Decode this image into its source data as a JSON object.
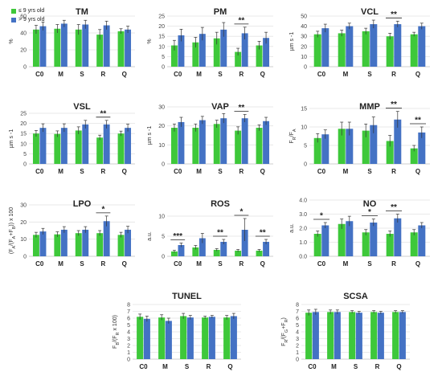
{
  "legend": [
    {
      "label": "≤ 9 yrs old",
      "color": "#3ec83a"
    },
    {
      "label": "> 9 yrs old",
      "color": "#4472c4"
    }
  ],
  "chart_data": [
    {
      "type": "bar",
      "title": "TM",
      "ylabel": "%",
      "categories": [
        "C0",
        "M",
        "S",
        "R",
        "Q"
      ],
      "ylim": [
        0,
        60
      ],
      "yticks": [
        0,
        20,
        40,
        60
      ],
      "series": [
        {
          "name": "≤ 9 yrs old",
          "values": [
            44,
            45,
            44,
            38,
            42
          ],
          "errors": [
            5,
            5,
            6,
            6,
            3
          ]
        },
        {
          "name": "> 9 yrs old",
          "values": [
            48,
            51,
            50,
            49,
            44
          ],
          "errors": [
            5,
            4,
            5,
            5,
            4
          ]
        }
      ],
      "annotations": []
    },
    {
      "type": "bar",
      "title": "PM",
      "ylabel": "%",
      "categories": [
        "C0",
        "M",
        "S",
        "R",
        "Q"
      ],
      "ylim": [
        0,
        25
      ],
      "yticks": [
        0,
        5,
        10,
        15,
        20,
        25
      ],
      "series": [
        {
          "name": "≤ 9 yrs old",
          "values": [
            10.5,
            12,
            14,
            7.3,
            10.5
          ],
          "errors": [
            2.5,
            2.5,
            3,
            1.8,
            2
          ]
        },
        {
          "name": "> 9 yrs old",
          "values": [
            15.5,
            16.2,
            18.3,
            16.5,
            14.2
          ],
          "errors": [
            3,
            3.2,
            3.5,
            3,
            2.8
          ]
        }
      ],
      "annotations": [
        {
          "category": "R",
          "label": "**"
        }
      ]
    },
    {
      "type": "bar",
      "title": "VCL",
      "ylabel": "µm s -1",
      "categories": [
        "C0",
        "M",
        "S",
        "R",
        "Q"
      ],
      "ylim": [
        0,
        50
      ],
      "yticks": [
        0,
        10,
        20,
        30,
        40,
        50
      ],
      "series": [
        {
          "name": "≤ 9 yrs old",
          "values": [
            32,
            33,
            35,
            30,
            32
          ],
          "errors": [
            3,
            3,
            3,
            3,
            2
          ]
        },
        {
          "name": "> 9 yrs old",
          "values": [
            38,
            40,
            42,
            42,
            40
          ],
          "errors": [
            4,
            3,
            4,
            3,
            3
          ]
        }
      ],
      "annotations": [
        {
          "category": "R",
          "label": "**"
        }
      ]
    },
    {
      "type": "bar",
      "title": "VSL",
      "ylabel": "µm s -1",
      "categories": [
        "C0",
        "M",
        "S",
        "R",
        "Q"
      ],
      "ylim": [
        0,
        25
      ],
      "yticks": [
        0,
        5,
        10,
        15,
        20,
        25
      ],
      "series": [
        {
          "name": "≤ 9 yrs old",
          "values": [
            15,
            14.8,
            16.5,
            13,
            15
          ],
          "errors": [
            1.5,
            1.5,
            1.8,
            1.2,
            1.2
          ]
        },
        {
          "name": "> 9 yrs old",
          "values": [
            17.8,
            17.8,
            19.5,
            19.5,
            17.8
          ],
          "errors": [
            2,
            2,
            2,
            2,
            1.8
          ]
        }
      ],
      "annotations": [
        {
          "category": "R",
          "label": "**"
        }
      ]
    },
    {
      "type": "bar",
      "title": "VAP",
      "ylabel": "µm s -1",
      "categories": [
        "C0",
        "M",
        "S",
        "R",
        "Q"
      ],
      "ylim": [
        0,
        30
      ],
      "yticks": [
        0,
        10,
        20,
        30
      ],
      "series": [
        {
          "name": "≤ 9 yrs old",
          "values": [
            19,
            19,
            21,
            17.5,
            19
          ],
          "errors": [
            2,
            2,
            2,
            2,
            1.5
          ]
        },
        {
          "name": "> 9 yrs old",
          "values": [
            22,
            23,
            24,
            24,
            22.5
          ],
          "errors": [
            2.5,
            2,
            2.5,
            2,
            2
          ]
        }
      ],
      "annotations": [
        {
          "category": "R",
          "label": "**"
        }
      ]
    },
    {
      "type": "bar",
      "title": "MMP",
      "ylabel": "F_R/F_A",
      "categories": [
        "C0",
        "M",
        "S",
        "R",
        "Q"
      ],
      "ylim": [
        0,
        15
      ],
      "yticks": [
        0,
        5,
        10,
        15
      ],
      "series": [
        {
          "name": "≤ 9 yrs old",
          "values": [
            7,
            9.5,
            9,
            6.2,
            4.2
          ],
          "errors": [
            1.2,
            1.8,
            1.8,
            1.5,
            0.8
          ]
        },
        {
          "name": "> 9 yrs old",
          "values": [
            8,
            9.5,
            10.5,
            12,
            8.5
          ],
          "errors": [
            1.2,
            1.8,
            2.2,
            2.2,
            1.5
          ]
        }
      ],
      "annotations": [
        {
          "category": "R",
          "label": "**"
        },
        {
          "category": "Q",
          "label": "**"
        }
      ]
    },
    {
      "type": "bar",
      "title": "LPO",
      "ylabel": "(F_A/(F_A+F_B)) x 100",
      "categories": [
        "C0",
        "M",
        "S",
        "R",
        "Q"
      ],
      "ylim": [
        0,
        30
      ],
      "yticks": [
        0,
        10,
        20,
        30
      ],
      "series": [
        {
          "name": "≤ 9 yrs old",
          "values": [
            12.5,
            12.8,
            13.5,
            13.5,
            12.5
          ],
          "errors": [
            1.5,
            1.5,
            1.5,
            1.5,
            1.5
          ]
        },
        {
          "name": "> 9 yrs old",
          "values": [
            14.5,
            15.5,
            15.5,
            20.5,
            15.5
          ],
          "errors": [
            1.8,
            1.8,
            1.8,
            3,
            2
          ]
        }
      ],
      "annotations": [
        {
          "category": "R",
          "label": "*"
        }
      ]
    },
    {
      "type": "bar",
      "title": "ROS",
      "ylabel": "a.u.",
      "categories": [
        "C0",
        "M",
        "S",
        "R",
        "Q"
      ],
      "ylim": [
        0,
        10
      ],
      "yticks": [
        0,
        5,
        10
      ],
      "series": [
        {
          "name": "≤ 9 yrs old",
          "values": [
            1.2,
            2.2,
            1.6,
            1.4,
            1.4
          ],
          "errors": [
            0.3,
            0.5,
            0.3,
            0.3,
            0.3
          ]
        },
        {
          "name": "> 9 yrs old",
          "values": [
            2.8,
            4.5,
            3.6,
            6.6,
            3.6
          ],
          "errors": [
            0.5,
            1.2,
            0.6,
            2.8,
            0.6
          ]
        }
      ],
      "annotations": [
        {
          "category": "C0",
          "label": "***"
        },
        {
          "category": "S",
          "label": "**"
        },
        {
          "category": "R",
          "label": "*"
        },
        {
          "category": "Q",
          "label": "**"
        }
      ]
    },
    {
      "type": "bar",
      "title": "NO",
      "ylabel": "a.u.",
      "categories": [
        "C0",
        "M",
        "S",
        "R",
        "Q"
      ],
      "ylim": [
        0,
        4
      ],
      "yticks": [
        "0.0",
        "1.0",
        "2.0",
        "3.0",
        "4.0"
      ],
      "series": [
        {
          "name": "≤ 9 yrs old",
          "values": [
            1.6,
            2.3,
            1.7,
            1.6,
            1.7
          ],
          "errors": [
            0.2,
            0.35,
            0.2,
            0.2,
            0.2
          ]
        },
        {
          "name": "> 9 yrs old",
          "values": [
            2.2,
            2.5,
            2.4,
            2.7,
            2.2
          ],
          "errors": [
            0.2,
            0.35,
            0.25,
            0.3,
            0.2
          ]
        }
      ],
      "annotations": [
        {
          "category": "C0",
          "label": "*"
        },
        {
          "category": "S",
          "label": "*"
        },
        {
          "category": "R",
          "label": "**"
        }
      ]
    },
    {
      "type": "bar",
      "title": "TUNEL",
      "ylabel": "F_B/(F_R x 100)",
      "categories": [
        "C0",
        "M",
        "S",
        "R",
        "Q"
      ],
      "ylim": [
        0,
        8
      ],
      "yticks": [
        0,
        1,
        2,
        3,
        4,
        5,
        6,
        7,
        8
      ],
      "series": [
        {
          "name": "≤ 9 yrs old",
          "values": [
            6.2,
            6.1,
            6.3,
            6.1,
            6.1
          ],
          "errors": [
            0.4,
            0.4,
            0.4,
            0.2,
            0.3
          ]
        },
        {
          "name": "> 9 yrs old",
          "values": [
            5.9,
            5.6,
            6.1,
            6.2,
            6.3
          ],
          "errors": [
            0.4,
            0.4,
            0.3,
            0.2,
            0.4
          ]
        }
      ],
      "annotations": []
    },
    {
      "type": "bar",
      "title": "SCSA",
      "ylabel": "F_R/(F_G+F_R)",
      "categories": [
        "C0",
        "M",
        "S",
        "R",
        "Q"
      ],
      "ylim": [
        0,
        8
      ],
      "yticks": [
        0,
        1,
        2,
        3,
        4,
        5,
        6,
        7,
        8
      ],
      "series": [
        {
          "name": "≤ 9 yrs old",
          "values": [
            6.8,
            6.9,
            6.9,
            6.9,
            6.9
          ],
          "errors": [
            0.4,
            0.3,
            0.2,
            0.2,
            0.2
          ]
        },
        {
          "name": "> 9 yrs old",
          "values": [
            6.9,
            6.9,
            6.8,
            6.8,
            6.9
          ],
          "errors": [
            0.4,
            0.3,
            0.2,
            0.2,
            0.2
          ]
        }
      ],
      "annotations": []
    }
  ]
}
